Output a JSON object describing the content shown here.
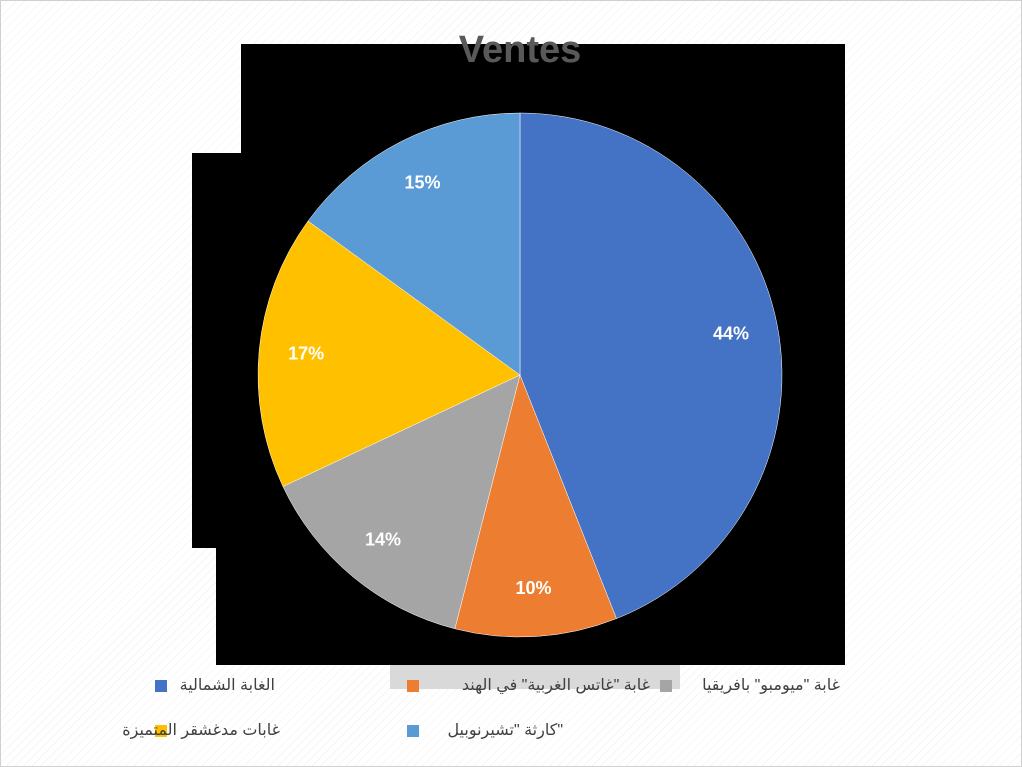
{
  "chart_data": {
    "type": "pie",
    "title": "Ventes",
    "categories": [
      "الغابة الشمالية",
      "غابة \"غاتس الغربية\" في الهند",
      "غابة \"ميومبو\" بافريقيا",
      "غابات مدغشقر المتميزة",
      "كارثة \"تشيرنوبيل\""
    ],
    "values": [
      44,
      10,
      14,
      17,
      15
    ],
    "value_labels": [
      "44%",
      "10%",
      "14%",
      "17%",
      "15%"
    ],
    "colors": [
      "#4472c4",
      "#ed7d31",
      "#a5a5a5",
      "#ffc000",
      "#5b9bd5"
    ],
    "legend": "bottom"
  }
}
